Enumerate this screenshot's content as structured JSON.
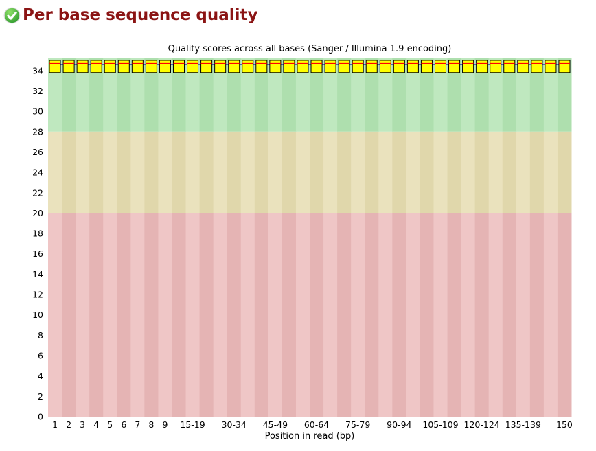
{
  "header": {
    "title": "Per base sequence quality",
    "status": "pass",
    "title_color": "#8b1414",
    "icon": "pass-check-icon"
  },
  "chart_data": {
    "type": "boxplot",
    "title": "Quality scores across all bases (Sanger / Illumina 1.9 encoding)",
    "xlabel": "Position in read (bp)",
    "ylabel": "",
    "ylim": [
      0,
      35.2
    ],
    "yticks": [
      0,
      2,
      4,
      6,
      8,
      10,
      12,
      14,
      16,
      18,
      20,
      22,
      24,
      26,
      28,
      30,
      32,
      34
    ],
    "grid": false,
    "legend": "none",
    "background_bands": [
      {
        "from": 0,
        "to": 20,
        "zone": "poor",
        "color_even": "#efc6c6",
        "color_odd": "#e5b4b4"
      },
      {
        "from": 20,
        "to": 28,
        "zone": "medium",
        "color_even": "#eae2bd",
        "color_odd": "#e0d7ab"
      },
      {
        "from": 28,
        "to": 35.2,
        "zone": "good",
        "color_even": "#bfe8bf",
        "color_odd": "#aedfae"
      }
    ],
    "positions": [
      "1",
      "2",
      "3",
      "4",
      "5",
      "6",
      "7",
      "8",
      "9",
      "10-14",
      "15-19",
      "20-24",
      "25-29",
      "30-34",
      "35-39",
      "40-44",
      "45-49",
      "50-54",
      "55-59",
      "60-64",
      "65-69",
      "70-74",
      "75-79",
      "80-84",
      "85-89",
      "90-94",
      "95-99",
      "100-104",
      "105-109",
      "110-114",
      "115-119",
      "120-124",
      "125-129",
      "130-134",
      "135-139",
      "140-144",
      "145-149",
      "150"
    ],
    "x_tick_labels": [
      "1",
      "2",
      "3",
      "4",
      "5",
      "6",
      "7",
      "8",
      "9",
      "",
      "15-19",
      "",
      "",
      "30-34",
      "",
      "",
      "45-49",
      "",
      "",
      "60-64",
      "",
      "",
      "75-79",
      "",
      "",
      "90-94",
      "",
      "",
      "105-109",
      "",
      "",
      "120-124",
      "",
      "",
      "135-139",
      "",
      "",
      "150"
    ],
    "series": {
      "uniform": true,
      "q1": 33.8,
      "median": 34.7,
      "q3": 35.0,
      "mean": 34.6
    },
    "box_style": {
      "fill": "#ffff00",
      "stroke": "#000000",
      "median_color": "#ff0000",
      "mean_color": "#2b2bbb"
    }
  }
}
